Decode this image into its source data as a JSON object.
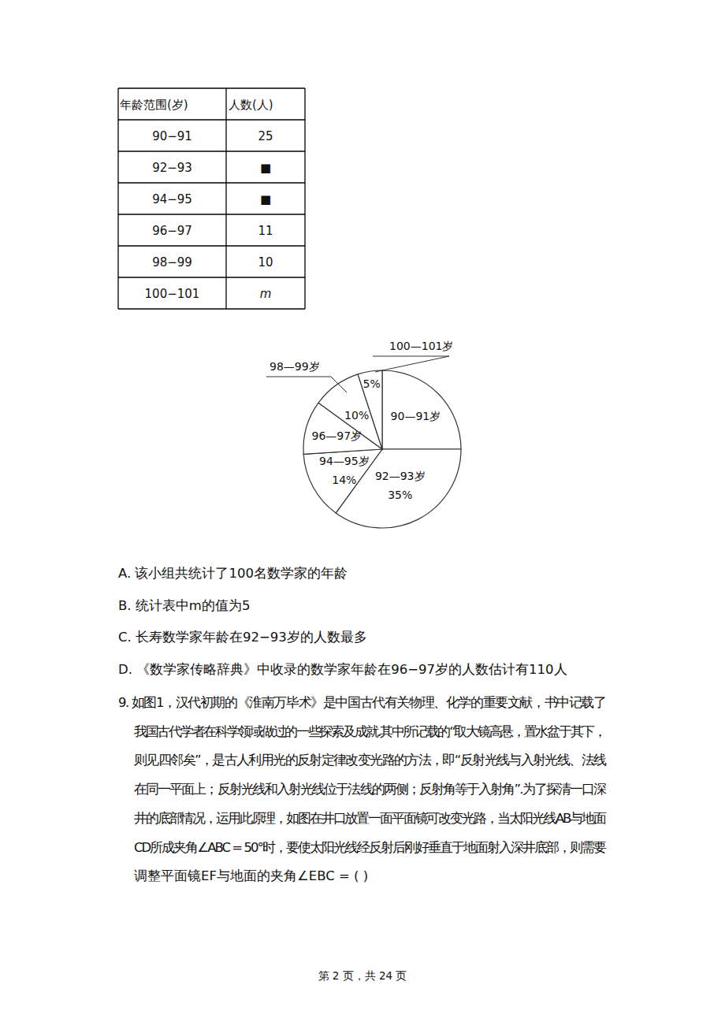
{
  "table": {
    "header": [
      "年龄范围(岁)",
      "人数(人)"
    ],
    "rows": [
      [
        "90−91",
        "25"
      ],
      [
        "92−93",
        "■"
      ],
      [
        "94−95",
        "■"
      ],
      [
        "96−97",
        "11"
      ],
      [
        "98−99",
        "10"
      ],
      [
        "100−101",
        "m"
      ]
    ]
  },
  "chart_data": {
    "type": "pie",
    "categories": [
      "90—91岁",
      "92—93岁",
      "94—95岁",
      "96—97岁",
      "98—99岁",
      "100—101岁"
    ],
    "values": [
      25,
      35,
      14,
      11,
      10,
      5
    ],
    "value_labels": [
      null,
      "35%",
      "14%",
      null,
      "10%",
      "5%"
    ],
    "color": "#ffffff"
  },
  "options": [
    "A. 该小组共统计了100名数学家的年龄",
    "B. 统计表中m的值为5",
    "C. 长寿数学家年龄在92−93岁的人数最多",
    "D. 《数学家传略辞典》中收录的数学家年龄在96−97岁的人数估计有110人"
  ],
  "question": {
    "lines": [
      "9.  如图1，汉代初期的《淮南万毕术》是中国古代有关物理、化学的重要文献，书中记载了",
      "我国古代学者在科学领域做过的一些探索及成就.其中所记载的“取大镜高悬，置水盆于其下，",
      "则见四邻矣”，是古人利用光的反射定律改变光路的方法，即“反射光线与入射光线、法线",
      "在同一平面上；反射光线和入射光线位于法线的两侧；反射角等于入射角”.为了探清一口深",
      "井的底部情况，运用此原理，如图在井口放置一面平面镜可改变光路，当太阳光线AB与地面",
      "CD所成夹角∠ABC = 50°时，要使太阳光线经反射后刚好垂直于地面射入深井底部，则需要",
      "调整平面镜EF与地面的夹角∠EBC = (    )"
    ]
  },
  "footer": "第 2 页，共 24 页"
}
